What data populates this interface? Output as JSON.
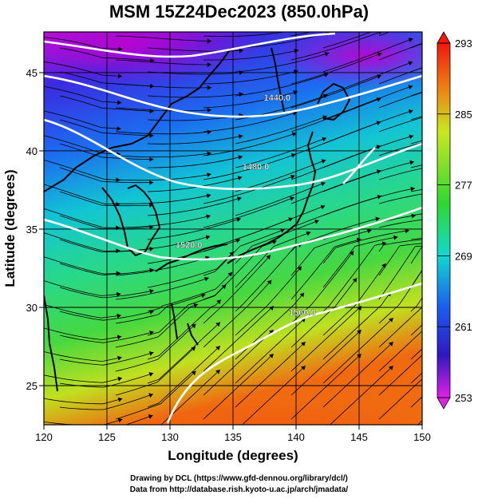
{
  "title": "MSM 15Z24Dec2023 (850.0hPa)",
  "x_axis_label": "Longitude (degrees)",
  "y_axis_label": "Latitude  (degrees)",
  "x_ticks": [
    {
      "value": 120,
      "label": "120"
    },
    {
      "value": 125,
      "label": "125"
    },
    {
      "value": 130,
      "label": "130"
    },
    {
      "value": 135,
      "label": "135"
    },
    {
      "value": 140,
      "label": "140"
    },
    {
      "value": 145,
      "label": "145"
    },
    {
      "value": 150,
      "label": "150"
    }
  ],
  "y_ticks": [
    {
      "value": 25,
      "label": "25"
    },
    {
      "value": 30,
      "label": "30"
    },
    {
      "value": 35,
      "label": "35"
    },
    {
      "value": 40,
      "label": "40"
    },
    {
      "value": 45,
      "label": "45"
    }
  ],
  "x_range": [
    120,
    150
  ],
  "y_range": [
    22.5,
    47.6
  ],
  "colorbar": {
    "min": 253,
    "max": 293,
    "labels": [
      "293",
      "285",
      "277",
      "269",
      "261",
      "253"
    ],
    "label_values": [
      293,
      285,
      277,
      269,
      261,
      253
    ]
  },
  "contours": [
    {
      "label": "1440.0",
      "lon": 138.5,
      "lat": 43.2
    },
    {
      "label": "1480.0",
      "lon": 136.8,
      "lat": 38.8
    },
    {
      "label": "1520.0",
      "lon": 131.5,
      "lat": 33.8
    },
    {
      "label": "1560.0",
      "lon": 140.5,
      "lat": 29.5
    }
  ],
  "credits": {
    "line1": "Drawing by DCL (https://www.gfd-dennou.org/library/dcl/)",
    "line2": "Data from http://database.rish.kyoto-u.ac.jp/arch/jmadata/"
  }
}
